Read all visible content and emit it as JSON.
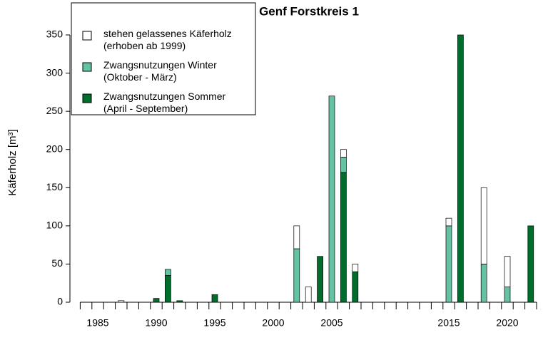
{
  "chart_data": {
    "type": "bar",
    "stacked": true,
    "title": "Genf Forstkreis 1",
    "y_label": "Käferholz [m³]",
    "categories": [
      null,
      null,
      "1985",
      null,
      null,
      null,
      null,
      "1990",
      null,
      null,
      null,
      null,
      "1995",
      null,
      null,
      null,
      null,
      "2000",
      null,
      null,
      null,
      null,
      "2005",
      null,
      null,
      null,
      null,
      null,
      null,
      null,
      null,
      null,
      "2015",
      null,
      null,
      null,
      null,
      "2020",
      null,
      null
    ],
    "series": [
      {
        "name": "Zwangsnutzungen Sommer (April - September)",
        "color": "#006d2c",
        "values": [
          null,
          null,
          null,
          null,
          null,
          null,
          null,
          5,
          35,
          2,
          null,
          null,
          10,
          null,
          null,
          null,
          null,
          null,
          null,
          null,
          null,
          60,
          null,
          170,
          40,
          null,
          null,
          null,
          null,
          null,
          null,
          null,
          null,
          350,
          null,
          null,
          null,
          null,
          null,
          100
        ]
      },
      {
        "name": "Zwangsnutzungen Winter (Oktober - März)",
        "color": "#66c2a4",
        "values": [
          null,
          null,
          null,
          null,
          null,
          null,
          null,
          null,
          8,
          null,
          null,
          null,
          null,
          null,
          null,
          null,
          null,
          null,
          null,
          70,
          null,
          null,
          270,
          20,
          null,
          null,
          null,
          null,
          null,
          null,
          null,
          null,
          100,
          null,
          null,
          50,
          null,
          20,
          null,
          null
        ]
      },
      {
        "name": "stehen gelassenes Käferholz (erhoben ab 1999)",
        "color": "#ffffff",
        "values": [
          null,
          null,
          null,
          null,
          2,
          null,
          null,
          null,
          null,
          null,
          null,
          null,
          null,
          null,
          null,
          null,
          null,
          null,
          null,
          30,
          20,
          null,
          null,
          10,
          10,
          null,
          null,
          null,
          null,
          null,
          null,
          null,
          10,
          null,
          null,
          100,
          null,
          40,
          null,
          null
        ]
      }
    ],
    "ylim": [
      0,
      350
    ],
    "yticks": [
      0,
      50,
      100,
      150,
      200,
      250,
      300,
      350
    ]
  }
}
